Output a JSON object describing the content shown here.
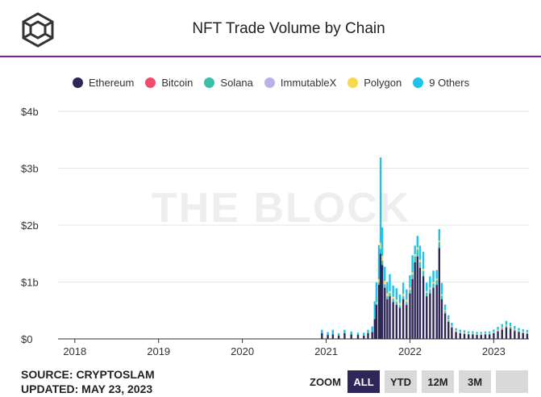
{
  "title": "NFT Trade Volume by Chain",
  "watermark": "THE BLOCK",
  "legend": [
    {
      "label": "Ethereum",
      "color": "#2d2657"
    },
    {
      "label": "Bitcoin",
      "color": "#f04a6e"
    },
    {
      "label": "Solana",
      "color": "#3bbfad"
    },
    {
      "label": "ImmutableX",
      "color": "#b8b2e6"
    },
    {
      "label": "Polygon",
      "color": "#f7d94c"
    },
    {
      "label": "9 Others",
      "color": "#1ec3e9"
    }
  ],
  "footer": {
    "source": "SOURCE: CRYPTOSLAM",
    "updated": "UPDATED: MAY 23, 2023"
  },
  "zoom": {
    "label": "ZOOM",
    "buttons": [
      {
        "label": "ALL",
        "active": true
      },
      {
        "label": "YTD",
        "active": false
      },
      {
        "label": "12M",
        "active": false
      },
      {
        "label": "3M",
        "active": false
      },
      {
        "label": "",
        "active": false
      }
    ]
  },
  "chart_data": {
    "type": "bar",
    "stacked": true,
    "title": "NFT Trade Volume by Chain",
    "y_tick_labels": [
      "$0",
      "$1b",
      "$2b",
      "$3b",
      "$4b"
    ],
    "ylim": [
      0,
      4
    ],
    "y_unit": "billions USD",
    "x_tick_labels": [
      "2018",
      "2019",
      "2020",
      "2021",
      "2022",
      "2023"
    ],
    "xlim": [
      2017.8,
      2023.42
    ],
    "x_tick_values": [
      2018,
      2019,
      2020,
      2021,
      2022,
      2023
    ],
    "x": [
      2020.95,
      2021.02,
      2021.08,
      2021.15,
      2021.22,
      2021.3,
      2021.38,
      2021.45,
      2021.5,
      2021.55,
      2021.58,
      2021.6,
      2021.63,
      2021.65,
      2021.67,
      2021.7,
      2021.73,
      2021.76,
      2021.8,
      2021.84,
      2021.88,
      2021.92,
      2021.96,
      2022.0,
      2022.03,
      2022.06,
      2022.09,
      2022.12,
      2022.16,
      2022.2,
      2022.24,
      2022.28,
      2022.32,
      2022.35,
      2022.38,
      2022.42,
      2022.46,
      2022.5,
      2022.55,
      2022.6,
      2022.65,
      2022.7,
      2022.75,
      2022.8,
      2022.85,
      2022.9,
      2022.95,
      2023.0,
      2023.05,
      2023.1,
      2023.15,
      2023.2,
      2023.25,
      2023.3,
      2023.35,
      2023.4
    ],
    "series": [
      {
        "name": "Ethereum",
        "color": "#2d2657",
        "values": [
          0.1,
          0.07,
          0.08,
          0.06,
          0.1,
          0.08,
          0.07,
          0.06,
          0.1,
          0.12,
          0.35,
          0.6,
          0.95,
          1.5,
          1.3,
          0.9,
          0.7,
          0.75,
          0.65,
          0.6,
          0.55,
          0.7,
          0.6,
          0.8,
          1.05,
          1.35,
          1.45,
          1.25,
          1.1,
          0.75,
          0.8,
          0.9,
          0.95,
          1.6,
          0.7,
          0.45,
          0.3,
          0.2,
          0.12,
          0.1,
          0.09,
          0.08,
          0.08,
          0.07,
          0.07,
          0.08,
          0.08,
          0.1,
          0.13,
          0.16,
          0.2,
          0.18,
          0.14,
          0.12,
          0.1,
          0.09
        ]
      },
      {
        "name": "Bitcoin",
        "color": "#f04a6e",
        "values": [
          0,
          0,
          0,
          0,
          0,
          0,
          0,
          0,
          0,
          0,
          0,
          0,
          0,
          0,
          0,
          0,
          0,
          0,
          0,
          0,
          0,
          0,
          0,
          0,
          0,
          0,
          0,
          0,
          0,
          0,
          0,
          0,
          0,
          0,
          0,
          0,
          0,
          0,
          0,
          0,
          0,
          0,
          0,
          0,
          0,
          0,
          0,
          0,
          0.004,
          0.01,
          0.015,
          0.012,
          0.01,
          0.008,
          0.007,
          0.006
        ]
      },
      {
        "name": "Solana",
        "color": "#3bbfad",
        "values": [
          0,
          0,
          0,
          0,
          0,
          0,
          0,
          0,
          0,
          0,
          0.01,
          0.02,
          0.04,
          0.08,
          0.07,
          0.06,
          0.05,
          0.05,
          0.05,
          0.05,
          0.04,
          0.05,
          0.05,
          0.06,
          0.08,
          0.1,
          0.12,
          0.1,
          0.09,
          0.06,
          0.07,
          0.07,
          0.08,
          0.1,
          0.06,
          0.04,
          0.03,
          0.02,
          0.015,
          0.01,
          0.01,
          0.01,
          0.01,
          0.01,
          0.01,
          0.01,
          0.01,
          0.012,
          0.015,
          0.02,
          0.02,
          0.02,
          0.015,
          0.012,
          0.01,
          0.01
        ]
      },
      {
        "name": "ImmutableX",
        "color": "#b8b2e6",
        "values": [
          0,
          0,
          0,
          0,
          0,
          0,
          0,
          0,
          0,
          0,
          0,
          0.005,
          0.01,
          0.01,
          0.01,
          0.01,
          0.01,
          0.01,
          0.01,
          0.01,
          0.01,
          0.01,
          0.01,
          0.01,
          0.01,
          0.01,
          0.01,
          0.01,
          0.01,
          0.01,
          0.01,
          0.01,
          0.01,
          0.01,
          0.005,
          0.005,
          0.005,
          0.003,
          0.002,
          0.002,
          0.002,
          0.002,
          0.002,
          0.002,
          0.002,
          0.002,
          0.002,
          0.002,
          0.002,
          0.002,
          0.002,
          0.002,
          0.002,
          0.002,
          0.002,
          0.002
        ]
      },
      {
        "name": "Polygon",
        "color": "#f7d94c",
        "values": [
          0,
          0,
          0,
          0,
          0,
          0,
          0,
          0,
          0,
          0,
          0,
          0.02,
          0.05,
          0.1,
          0.08,
          0.05,
          0.04,
          0.03,
          0.03,
          0.03,
          0.03,
          0.03,
          0.03,
          0.03,
          0.03,
          0.03,
          0.03,
          0.03,
          0.03,
          0.02,
          0.02,
          0.02,
          0.02,
          0.02,
          0.02,
          0.01,
          0.01,
          0.01,
          0.01,
          0.01,
          0.01,
          0.01,
          0.01,
          0.01,
          0.01,
          0.01,
          0.01,
          0.01,
          0.01,
          0.01,
          0.01,
          0.01,
          0.01,
          0.01,
          0.01,
          0.01
        ]
      },
      {
        "name": "9 Others",
        "color": "#1ec3e9",
        "values": [
          0.06,
          0.05,
          0.08,
          0.04,
          0.06,
          0.05,
          0.04,
          0.05,
          0.06,
          0.1,
          0.3,
          0.35,
          0.6,
          1.5,
          0.5,
          0.25,
          0.2,
          0.3,
          0.2,
          0.2,
          0.15,
          0.2,
          0.18,
          0.22,
          0.3,
          0.15,
          0.2,
          0.25,
          0.3,
          0.15,
          0.2,
          0.2,
          0.15,
          0.2,
          0.2,
          0.1,
          0.07,
          0.05,
          0.04,
          0.04,
          0.04,
          0.03,
          0.03,
          0.03,
          0.03,
          0.03,
          0.03,
          0.04,
          0.05,
          0.06,
          0.07,
          0.06,
          0.05,
          0.04,
          0.04,
          0.04
        ]
      }
    ]
  }
}
